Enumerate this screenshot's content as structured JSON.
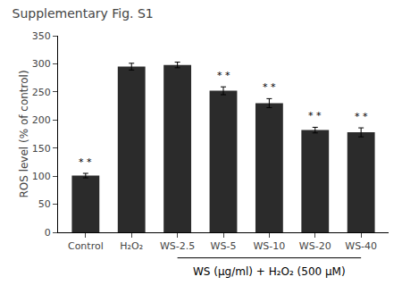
{
  "chart_data": {
    "type": "bar",
    "title": "Supplementary Fig. S1",
    "categories": [
      "Control",
      "H₂O₂",
      "WS-2.5",
      "WS-5",
      "WS-10",
      "WS-20",
      "WS-40"
    ],
    "values": [
      101,
      295,
      298,
      252,
      230,
      182,
      178
    ],
    "errors": [
      4,
      6,
      5,
      7,
      8,
      5,
      8
    ],
    "annotations": [
      "* *",
      null,
      null,
      "* *",
      "* *",
      "* *",
      "* *"
    ],
    "color": "#2b2b2b",
    "ylabel": "ROS level (% of control)",
    "xlabel": "WS (µg/ml) + H₂O₂ (500 µM)",
    "ylim": [
      0,
      350
    ],
    "yticks": [
      0,
      50,
      100,
      150,
      200,
      250,
      300,
      350
    ],
    "grid": false
  }
}
